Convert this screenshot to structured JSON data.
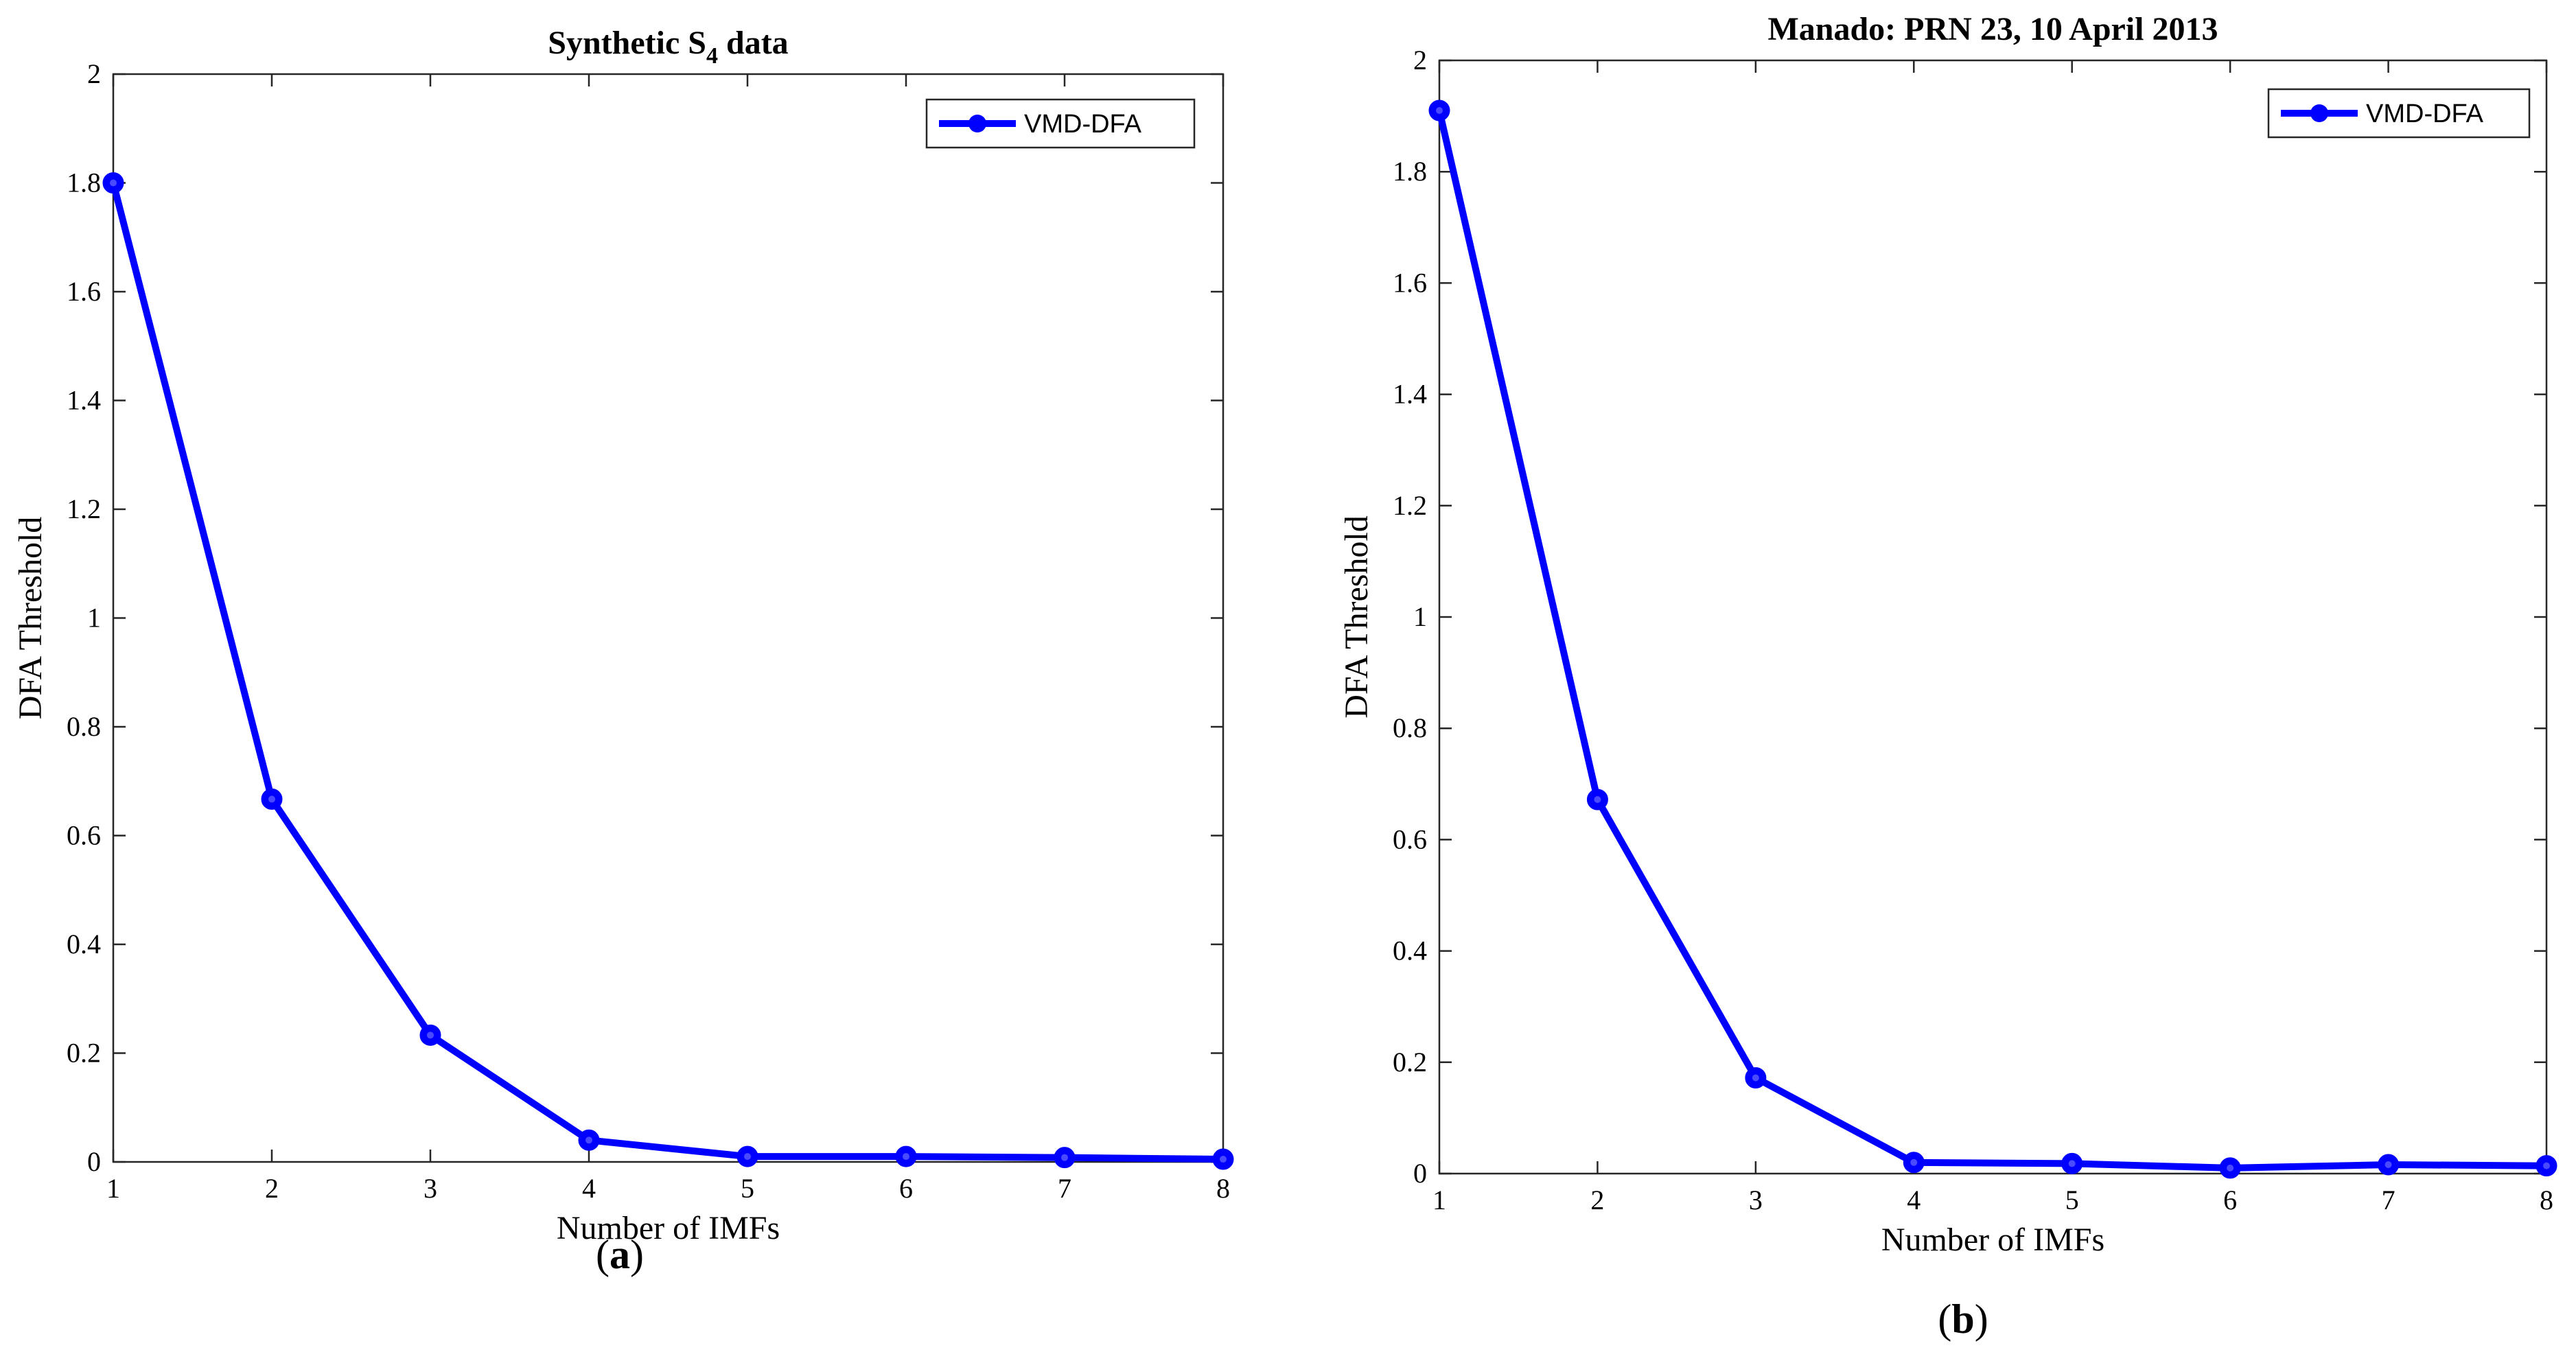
{
  "chart_data": [
    {
      "type": "line",
      "title": "Synthetic S",
      "title_subscript": "4",
      "title_suffix": " data",
      "xlabel": "Number of IMFs",
      "ylabel": "DFA Threshold",
      "xlim": [
        1,
        8
      ],
      "ylim": [
        0,
        2
      ],
      "xticks": [
        1,
        2,
        3,
        4,
        5,
        6,
        7,
        8
      ],
      "yticks": [
        0,
        0.2,
        0.4,
        0.6,
        0.8,
        1,
        1.2,
        1.4,
        1.6,
        1.8,
        2
      ],
      "ytick_labels": [
        "0",
        "0.2",
        "0.4",
        "0.6",
        "0.8",
        "1",
        "1.2",
        "1.4",
        "1.6",
        "1.8",
        "2"
      ],
      "legend_position": "top-right",
      "series": [
        {
          "name": "VMD-DFA",
          "color": "#0000ff",
          "marker": "circle",
          "x": [
            1,
            2,
            3,
            4,
            5,
            6,
            7,
            8
          ],
          "y": [
            1.8,
            0.667,
            0.233,
            0.04,
            0.01,
            0.01,
            0.008,
            0.005
          ]
        }
      ],
      "caption_open": "(",
      "caption_letter": "a",
      "caption_close": ")"
    },
    {
      "type": "line",
      "title": "Manado: PRN 23, 10 April 2013",
      "xlabel": "Number of IMFs",
      "ylabel": "DFA Threshold",
      "xlim": [
        1,
        8
      ],
      "ylim": [
        0,
        2
      ],
      "xticks": [
        1,
        2,
        3,
        4,
        5,
        6,
        7,
        8
      ],
      "yticks": [
        0,
        0.2,
        0.4,
        0.6,
        0.8,
        1,
        1.2,
        1.4,
        1.6,
        1.8,
        2
      ],
      "ytick_labels": [
        "0",
        "0.2",
        "0.4",
        "0.6",
        "0.8",
        "1",
        "1.2",
        "1.4",
        "1.6",
        "1.8",
        "2"
      ],
      "legend_position": "top-right",
      "series": [
        {
          "name": "VMD-DFA",
          "color": "#0000ff",
          "marker": "circle",
          "x": [
            1,
            2,
            3,
            4,
            5,
            6,
            7,
            8
          ],
          "y": [
            1.91,
            0.672,
            0.172,
            0.02,
            0.018,
            0.01,
            0.016,
            0.014
          ]
        }
      ],
      "caption_open": "(",
      "caption_letter": "b",
      "caption_close": ")"
    }
  ]
}
